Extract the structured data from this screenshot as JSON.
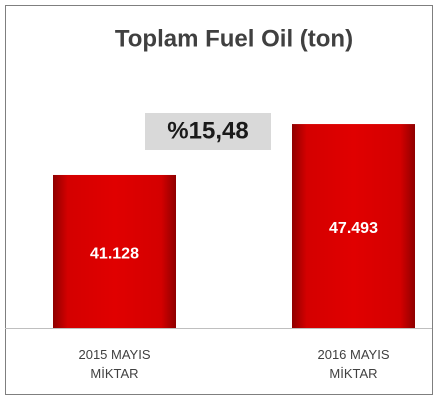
{
  "chart_data": {
    "type": "bar",
    "title": "Toplam Fuel Oil (ton)",
    "categories": [
      "2015 MAYIS MİKTAR",
      "2016 MAYIS MİKTAR"
    ],
    "values": [
      41128,
      47493
    ],
    "value_labels": [
      "41.128",
      "47.493"
    ],
    "color": "#cc0000",
    "ylim": [
      22000,
      50000
    ],
    "annotation": "%15,48"
  }
}
